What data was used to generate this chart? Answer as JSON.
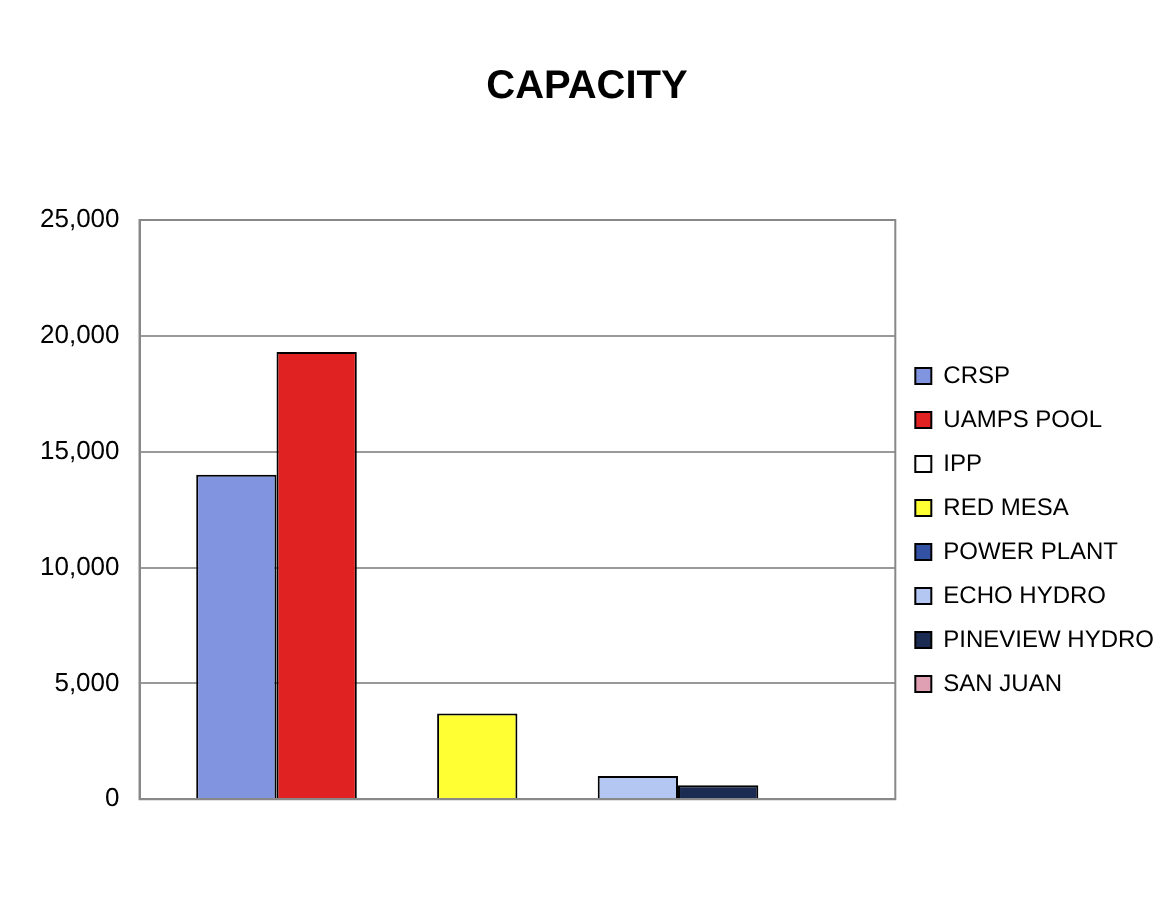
{
  "chart_data": {
    "type": "bar",
    "title": "CAPACITY",
    "categories": [
      null
    ],
    "series": [
      {
        "name": "CRSP",
        "color": "#8094df",
        "values": [
          14000
        ]
      },
      {
        "name": "UAMPS POOL",
        "color": "#e02222",
        "values": [
          19300
        ]
      },
      {
        "name": "IPP",
        "color": "#ffffff",
        "values": [
          null
        ]
      },
      {
        "name": "RED MESA",
        "color": "#ffff33",
        "values": [
          3700
        ]
      },
      {
        "name": "POWER PLANT",
        "color": "#3452a4",
        "values": [
          null
        ]
      },
      {
        "name": "ECHO HYDRO",
        "color": "#b4c6f2",
        "values": [
          1000
        ]
      },
      {
        "name": "PINEVIEW HYDRO",
        "color": "#1c2b52",
        "values": [
          600
        ]
      },
      {
        "name": "SAN JUAN",
        "color": "#e0a0b4",
        "values": [
          null
        ]
      }
    ],
    "ylim": [
      0,
      25000
    ],
    "yticks": [
      {
        "value": 0,
        "label": "0"
      },
      {
        "value": 5000,
        "label": "5,000"
      },
      {
        "value": 10000,
        "label": "10,000"
      },
      {
        "value": 15000,
        "label": "15,000"
      },
      {
        "value": 20000,
        "label": "20,000"
      },
      {
        "value": 25000,
        "label": "25,000"
      }
    ],
    "grid": "y",
    "legend": "right"
  }
}
